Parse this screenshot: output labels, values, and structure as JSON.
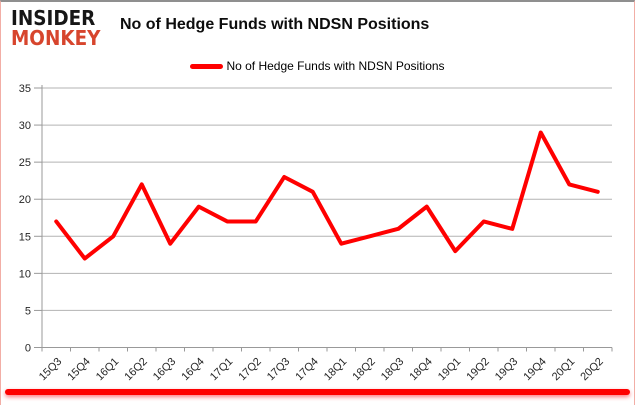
{
  "brand": {
    "line1": "INSIDER",
    "line2": "MONKEY",
    "line2_color": "#d7452d"
  },
  "header": {
    "title": "No of Hedge Funds with NDSN Positions"
  },
  "legend": {
    "label": "No of Hedge Funds with NDSN Positions",
    "swatch_color": "#ff0000"
  },
  "chart_data": {
    "type": "line",
    "title": "No of Hedge Funds with NDSN Positions",
    "categories": [
      "15Q3",
      "15Q4",
      "16Q1",
      "16Q2",
      "16Q3",
      "16Q4",
      "17Q1",
      "17Q2",
      "17Q3",
      "17Q4",
      "18Q1",
      "18Q2",
      "18Q3",
      "18Q4",
      "19Q1",
      "19Q2",
      "19Q3",
      "19Q4",
      "20Q1",
      "20Q2"
    ],
    "series": [
      {
        "name": "No of Hedge Funds with NDSN Positions",
        "color": "#ff0000",
        "values": [
          17,
          12,
          15,
          22,
          14,
          19,
          17,
          17,
          23,
          21,
          14,
          15,
          16,
          19,
          13,
          17,
          16,
          29,
          22,
          21
        ]
      }
    ],
    "xlabel": "",
    "ylabel": "",
    "ylim": [
      0,
      35
    ],
    "ytick_step": 5,
    "yticks": [
      0,
      5,
      10,
      15,
      20,
      25,
      30,
      35
    ],
    "grid": true,
    "legend_position": "top",
    "grid_color": "#b3b3b3",
    "axis_color": "#999999",
    "label_color": "#262626"
  },
  "footer": {
    "accent_bar_color": "#fe0000"
  }
}
